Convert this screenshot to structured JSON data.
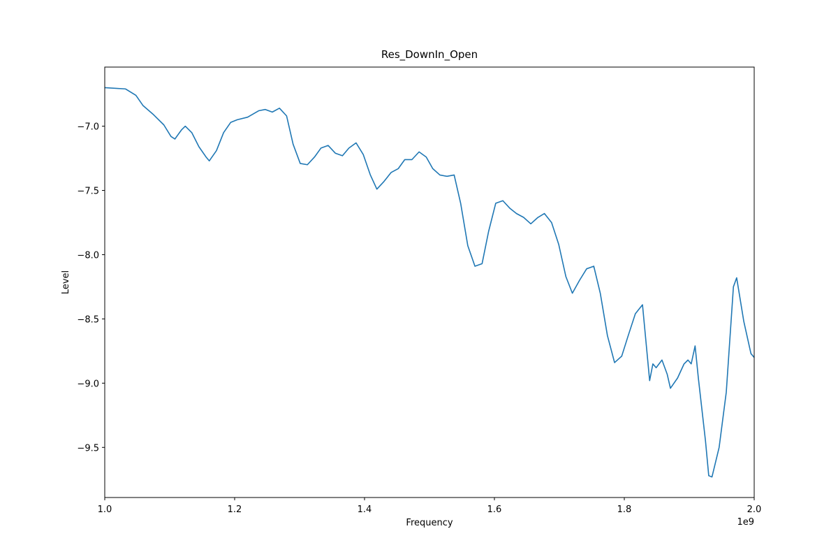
{
  "chart_data": {
    "type": "line",
    "title": "Res_DownIn_Open",
    "x_label": "Frequency",
    "y_label": "Level",
    "x_offset_label": "1e9",
    "x": [
      1000000000,
      1032000000,
      1048000000,
      1059000000,
      1075000000,
      1091000000,
      1102000000,
      1108000000,
      1118000000,
      1124000000,
      1134000000,
      1145000000,
      1156000000,
      1161000000,
      1172000000,
      1183000000,
      1194000000,
      1204000000,
      1220000000,
      1237000000,
      1247000000,
      1258000000,
      1269000000,
      1280000000,
      1290000000,
      1301000000,
      1312000000,
      1323000000,
      1333000000,
      1344000000,
      1355000000,
      1366000000,
      1376000000,
      1387000000,
      1398000000,
      1409000000,
      1419000000,
      1430000000,
      1441000000,
      1452000000,
      1462000000,
      1473000000,
      1484000000,
      1495000000,
      1505000000,
      1516000000,
      1527000000,
      1538000000,
      1548000000,
      1559000000,
      1570000000,
      1581000000,
      1591000000,
      1602000000,
      1613000000,
      1624000000,
      1634000000,
      1645000000,
      1656000000,
      1667000000,
      1677000000,
      1688000000,
      1699000000,
      1710000000,
      1720000000,
      1731000000,
      1742000000,
      1753000000,
      1763000000,
      1774000000,
      1785000000,
      1796000000,
      1806000000,
      1817000000,
      1828000000,
      1839000000,
      1844000000,
      1849000000,
      1858000000,
      1866000000,
      1871000000,
      1882000000,
      1892000000,
      1898000000,
      1903000000,
      1909000000,
      1914000000,
      1925000000,
      1930000000,
      1935000000,
      1946000000,
      1957000000,
      1968000000,
      1973000000,
      1984000000,
      1995000000,
      2000000000
    ],
    "series": [
      {
        "color": "#1f77b4",
        "values": [
          -6.7,
          -6.71,
          -6.76,
          -6.84,
          -6.91,
          -6.99,
          -7.08,
          -7.1,
          -7.03,
          -7.0,
          -7.05,
          -7.16,
          -7.24,
          -7.27,
          -7.19,
          -7.05,
          -6.97,
          -6.95,
          -6.93,
          -6.88,
          -6.87,
          -6.89,
          -6.86,
          -6.92,
          -7.14,
          -7.29,
          -7.3,
          -7.24,
          -7.17,
          -7.15,
          -7.21,
          -7.23,
          -7.17,
          -7.13,
          -7.22,
          -7.38,
          -7.49,
          -7.43,
          -7.36,
          -7.33,
          -7.26,
          -7.26,
          -7.2,
          -7.24,
          -7.33,
          -7.38,
          -7.39,
          -7.38,
          -7.6,
          -7.93,
          -8.09,
          -8.07,
          -7.82,
          -7.6,
          -7.58,
          -7.64,
          -7.68,
          -7.71,
          -7.76,
          -7.71,
          -7.68,
          -7.75,
          -7.92,
          -8.17,
          -8.3,
          -8.2,
          -8.11,
          -8.09,
          -8.3,
          -8.63,
          -8.84,
          -8.79,
          -8.63,
          -8.46,
          -8.39,
          -8.98,
          -8.85,
          -8.88,
          -8.82,
          -8.93,
          -9.04,
          -8.96,
          -8.85,
          -8.82,
          -8.85,
          -8.71,
          -8.96,
          -9.45,
          -9.72,
          -9.73,
          -9.5,
          -9.07,
          -8.25,
          -8.18,
          -8.52,
          -8.77,
          -8.8
        ]
      }
    ],
    "xlim": [
      1000000000,
      2000000000
    ],
    "xticks": [
      {
        "value": 1000000000,
        "label": "1.0"
      },
      {
        "value": 1200000000,
        "label": "1.2"
      },
      {
        "value": 1400000000,
        "label": "1.4"
      },
      {
        "value": 1600000000,
        "label": "1.6"
      },
      {
        "value": 1800000000,
        "label": "1.8"
      },
      {
        "value": 2000000000,
        "label": "2.0"
      }
    ],
    "ylim": [
      -9.89,
      -6.54
    ],
    "yticks": [
      {
        "value": -7,
        "label": "−7.0"
      },
      {
        "value": -7.5,
        "label": "−7.5"
      },
      {
        "value": -8,
        "label": "−8.0"
      },
      {
        "value": -8.5,
        "label": "−8.5"
      },
      {
        "value": -9,
        "label": "−9.0"
      },
      {
        "value": -9.5,
        "label": "−9.5"
      }
    ],
    "grid": false
  }
}
